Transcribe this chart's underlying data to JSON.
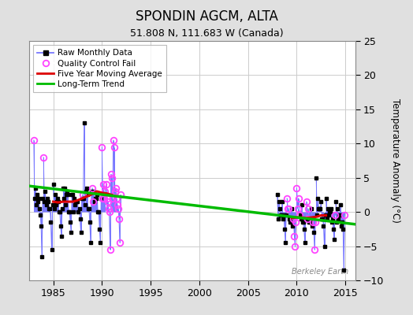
{
  "title": "SPONDIN AGCM, ALTA",
  "subtitle": "51.808 N, 111.683 W (Canada)",
  "ylabel": "Temperature Anomaly (°C)",
  "watermark": "Berkeley Earth",
  "xlim": [
    1982.5,
    2016
  ],
  "ylim": [
    -10,
    25
  ],
  "yticks": [
    -10,
    -5,
    0,
    5,
    10,
    15,
    20,
    25
  ],
  "xticks": [
    1985,
    1990,
    1995,
    2000,
    2005,
    2010,
    2015
  ],
  "bg_color": "#e0e0e0",
  "plot_bg_color": "#ffffff",
  "grid_color": "#cccccc",
  "raw_line_color": "#7777ff",
  "raw_marker_color": "#000000",
  "qc_fail_color": "#ff44ff",
  "moving_avg_color": "#dd0000",
  "trend_color": "#00bb00",
  "early_years": [
    1983.0,
    1983.083,
    1983.167,
    1983.25,
    1983.333,
    1983.417,
    1983.5,
    1983.583,
    1983.667,
    1983.75,
    1983.833,
    1983.917,
    1984.0,
    1984.083,
    1984.167,
    1984.25,
    1984.333,
    1984.417,
    1984.5,
    1984.583,
    1984.667,
    1984.75,
    1984.833,
    1984.917,
    1985.0,
    1985.083,
    1985.167,
    1985.25,
    1985.333,
    1985.417,
    1985.5,
    1985.583,
    1985.667,
    1985.75,
    1985.833,
    1985.917,
    1986.0,
    1986.083,
    1986.167,
    1986.25,
    1986.333,
    1986.417,
    1986.5,
    1986.583,
    1986.667,
    1986.75,
    1986.833,
    1986.917,
    1987.0,
    1987.083,
    1987.167,
    1987.25,
    1987.333,
    1987.417,
    1987.5,
    1987.583,
    1987.667,
    1987.75,
    1987.833,
    1987.917,
    1988.0,
    1988.083,
    1988.167,
    1988.25,
    1988.333,
    1988.417,
    1988.5,
    1988.583,
    1988.667,
    1988.75,
    1988.833,
    1988.917,
    1989.0,
    1989.083,
    1989.167,
    1989.25,
    1989.333,
    1989.417,
    1989.5,
    1989.583,
    1989.667,
    1989.75,
    1989.833,
    1989.917,
    1990.0,
    1990.083,
    1990.167,
    1990.25,
    1990.333,
    1990.417,
    1990.5,
    1990.583,
    1990.667,
    1990.75,
    1990.833,
    1990.917,
    1991.0,
    1991.083,
    1991.167,
    1991.25,
    1991.333,
    1991.417,
    1991.5,
    1991.583,
    1991.667,
    1991.75,
    1991.833,
    1991.917
  ],
  "early_values": [
    10.5,
    2.0,
    3.5,
    1.0,
    2.5,
    1.5,
    2.0,
    0.5,
    -0.5,
    -2.0,
    -6.5,
    2.0,
    8.0,
    1.5,
    3.0,
    1.5,
    1.0,
    2.0,
    1.5,
    0.5,
    0.5,
    -1.5,
    -5.5,
    1.0,
    4.0,
    0.5,
    2.5,
    1.0,
    1.5,
    2.0,
    1.5,
    0.0,
    0.0,
    -2.0,
    -3.5,
    0.5,
    3.5,
    2.0,
    3.5,
    1.0,
    2.5,
    3.0,
    2.5,
    0.0,
    0.0,
    -1.5,
    -3.0,
    2.5,
    2.5,
    0.0,
    2.0,
    1.0,
    1.5,
    1.5,
    1.5,
    0.0,
    0.5,
    -1.0,
    -3.0,
    2.0,
    2.5,
    2.0,
    13.0,
    1.0,
    3.0,
    3.5,
    2.5,
    0.5,
    0.5,
    -1.5,
    -4.5,
    3.0,
    3.5,
    1.5,
    3.0,
    1.5,
    2.0,
    2.0,
    2.5,
    0.0,
    0.0,
    -2.5,
    -4.5,
    2.0,
    9.5,
    2.0,
    4.0,
    2.0,
    3.0,
    4.0,
    2.0,
    1.5,
    0.5,
    0.0,
    -5.5,
    5.5,
    5.0,
    2.0,
    10.5,
    9.5,
    3.0,
    3.5,
    2.0,
    1.0,
    0.5,
    -1.0,
    -4.5,
    2.5
  ],
  "early_qc": [
    0,
    12,
    60,
    72,
    73,
    84,
    85,
    86,
    87,
    88,
    89,
    90,
    91,
    92,
    93,
    94,
    95,
    96,
    97,
    98,
    99,
    100,
    101,
    102,
    103,
    104,
    105,
    106,
    107,
    108
  ],
  "late_years": [
    2008.0,
    2008.083,
    2008.167,
    2008.25,
    2008.333,
    2008.417,
    2008.5,
    2008.583,
    2008.667,
    2008.75,
    2008.833,
    2008.917,
    2009.0,
    2009.083,
    2009.167,
    2009.25,
    2009.333,
    2009.417,
    2009.5,
    2009.583,
    2009.667,
    2009.75,
    2009.833,
    2009.917,
    2010.0,
    2010.083,
    2010.167,
    2010.25,
    2010.333,
    2010.417,
    2010.5,
    2010.583,
    2010.667,
    2010.75,
    2010.833,
    2010.917,
    2011.0,
    2011.083,
    2011.167,
    2011.25,
    2011.333,
    2011.417,
    2011.5,
    2011.583,
    2011.667,
    2011.75,
    2011.833,
    2011.917,
    2012.0,
    2012.083,
    2012.167,
    2012.25,
    2012.333,
    2012.417,
    2012.5,
    2012.583,
    2012.667,
    2012.75,
    2012.833,
    2012.917,
    2013.0,
    2013.083,
    2013.167,
    2013.25,
    2013.333,
    2013.417,
    2013.5,
    2013.583,
    2013.667,
    2013.75,
    2013.833,
    2013.917,
    2014.0,
    2014.083,
    2014.167,
    2014.25,
    2014.333,
    2014.417,
    2014.5,
    2014.583,
    2014.667,
    2014.75,
    2014.833,
    2014.917
  ],
  "late_values": [
    2.5,
    -1.0,
    1.5,
    0.5,
    -0.5,
    -0.5,
    1.5,
    -1.0,
    -0.5,
    -2.5,
    -4.5,
    -0.5,
    2.0,
    0.5,
    0.5,
    -1.0,
    -1.5,
    -1.5,
    0.5,
    -2.0,
    -1.0,
    -3.5,
    -5.0,
    -1.5,
    3.5,
    0.5,
    2.0,
    -0.5,
    -0.5,
    -1.0,
    1.0,
    -1.5,
    -1.5,
    -2.5,
    -4.5,
    -1.0,
    1.5,
    -1.0,
    0.5,
    -1.5,
    -1.5,
    -1.0,
    0.5,
    -2.0,
    -1.5,
    -3.0,
    -5.5,
    -1.5,
    5.0,
    -0.5,
    2.0,
    0.5,
    0.5,
    0.5,
    1.5,
    -1.0,
    -1.0,
    -2.0,
    -5.0,
    -0.5,
    2.0,
    -1.0,
    0.5,
    -0.5,
    0.0,
    0.0,
    0.5,
    -1.5,
    -1.0,
    -2.5,
    -4.0,
    -0.5,
    1.5,
    -1.5,
    0.5,
    -1.0,
    -0.5,
    -0.5,
    1.0,
    -2.0,
    -1.5,
    -2.5,
    -8.5,
    -0.5
  ],
  "late_qc": [
    12,
    13,
    14,
    20,
    21,
    22,
    23,
    24,
    25,
    26,
    27,
    36,
    37,
    38,
    44,
    46,
    47,
    71,
    83
  ],
  "trend_x": [
    1982.5,
    2016.0
  ],
  "trend_y": [
    3.8,
    -1.8
  ],
  "mavg_early_x": [
    1985.0,
    1985.5,
    1986.0,
    1986.5,
    1987.0,
    1987.5,
    1988.0,
    1988.5,
    1989.0,
    1989.5,
    1990.0,
    1990.5,
    1991.0
  ],
  "mavg_early_y": [
    1.5,
    1.4,
    1.5,
    1.5,
    1.5,
    1.7,
    2.0,
    2.3,
    2.6,
    3.0,
    2.8,
    2.7,
    2.5
  ],
  "mavg_late_x": [
    2009.5,
    2010.0,
    2010.5,
    2011.0,
    2011.5,
    2012.0,
    2012.5,
    2013.0
  ],
  "mavg_late_y": [
    -0.9,
    -0.8,
    -0.8,
    -0.9,
    -0.8,
    -0.7,
    -0.5,
    -0.5
  ]
}
